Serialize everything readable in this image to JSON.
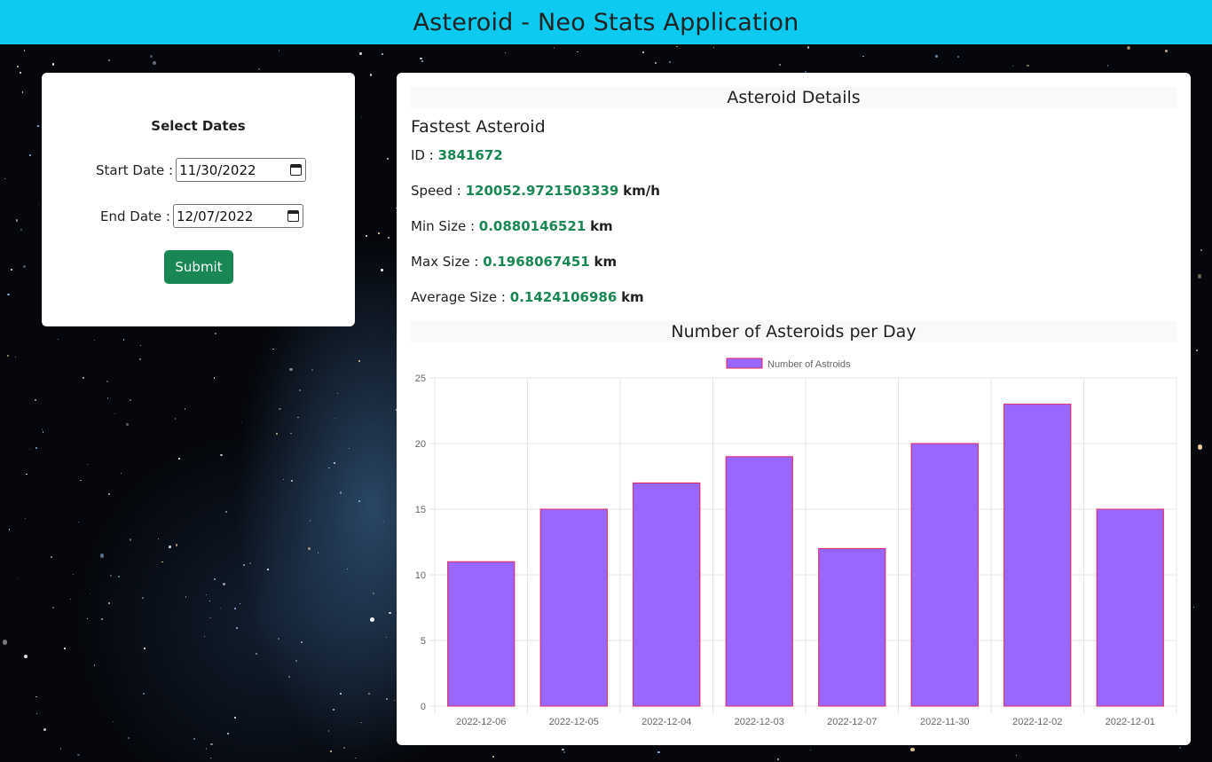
{
  "header": {
    "title": "Asteroid - Neo Stats Application"
  },
  "date_form": {
    "title": "Select Dates",
    "start_label": "Start Date :",
    "start_value": "11/30/2022",
    "end_label": "End Date :",
    "end_value": "12/07/2022",
    "submit_label": "Submit"
  },
  "details": {
    "section_title": "Asteroid Details",
    "fastest_title": "Fastest Asteroid",
    "id_label": "ID :",
    "id_value": "3841672",
    "speed_label": "Speed :",
    "speed_value": "120052.9721503339",
    "speed_unit": "km/h",
    "min_label": "Min Size :",
    "min_value": "0.0880146521",
    "min_unit": "km",
    "max_label": "Max Size :",
    "max_value": "0.1968067451",
    "max_unit": "km",
    "avg_label": "Average Size :",
    "avg_value": "0.1424106986",
    "avg_unit": "km",
    "chart_section_title": "Number of Asteroids per Day"
  },
  "colors": {
    "header_bg": "#0dcaf0",
    "submit_bg": "#198754",
    "value_green": "#198754",
    "bar_fill": "#9966ff",
    "bar_border": "#e0245e"
  },
  "chart_data": {
    "type": "bar",
    "categories": [
      "2022-12-06",
      "2022-12-05",
      "2022-12-04",
      "2022-12-03",
      "2022-12-07",
      "2022-11-30",
      "2022-12-02",
      "2022-12-01"
    ],
    "series": [
      {
        "name": "Number of Astroids",
        "values": [
          11,
          15,
          17,
          19,
          12,
          20,
          23,
          15
        ]
      }
    ],
    "yticks": [
      "0",
      "5",
      "10",
      "15",
      "20",
      "25"
    ],
    "ylim": [
      0,
      25
    ],
    "grid": true,
    "legend": "top-center"
  }
}
